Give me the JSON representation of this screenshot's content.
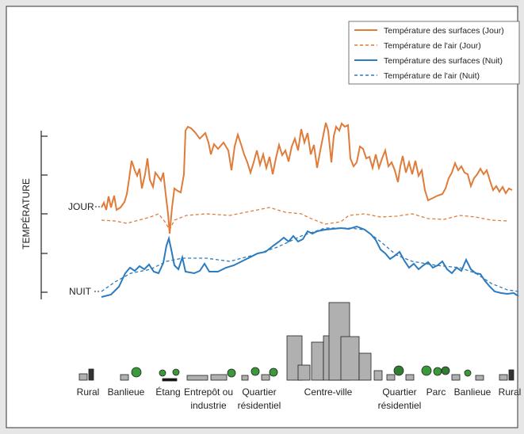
{
  "legend": [
    "Température des surfaces (Jour)",
    "Température de l'air (Jour)",
    "Température des surfaces (Nuit)",
    "Température de l'air (Nuit)"
  ],
  "axis_label": "TEMPÉRATURE",
  "labels": {
    "day": "JOUR",
    "night": "NUIT"
  },
  "zones": [
    [
      "Rural"
    ],
    [
      "Banlieue"
    ],
    [
      "Étang"
    ],
    [
      "Entrepôt ou",
      "industrie"
    ],
    [
      "Quartier",
      "résidentiel"
    ],
    [
      "Centre-ville"
    ],
    [
      "Quartier",
      "résidentiel"
    ],
    [
      "Parc"
    ],
    [
      "Banlieue"
    ],
    [
      "Rural"
    ]
  ]
}
